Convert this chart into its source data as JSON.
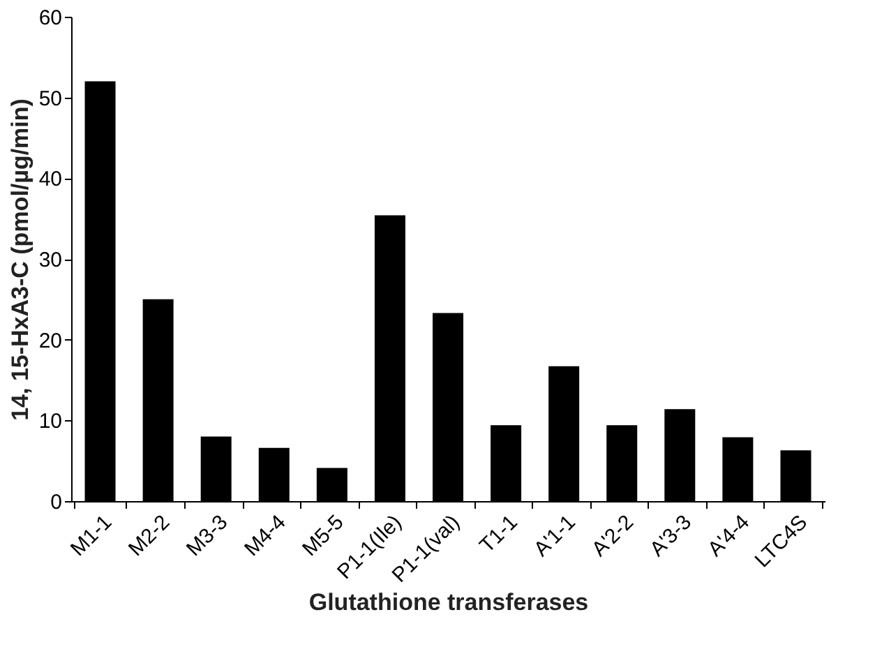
{
  "chart_data": {
    "type": "bar",
    "xlabel": "Glutathione transferases",
    "ylabel": "14, 15-HxA3-C  (pmol/µg/min)",
    "categories": [
      "M1-1",
      "M2-2",
      "M3-3",
      "M4-4",
      "M5-5",
      "P1-1(Ile)",
      "P1-1(val)",
      "T1-1",
      "A'1-1",
      "A'2-2",
      "A'3-3",
      "A'4-4",
      "LTC4S"
    ],
    "values": [
      52,
      25,
      8,
      6.6,
      4.1,
      35.4,
      23.3,
      9.4,
      16.7,
      9.4,
      11.4,
      7.9,
      6.3
    ],
    "color": "#000000",
    "ylim": [
      0,
      60
    ],
    "yticks": [
      0,
      10,
      20,
      30,
      40,
      50,
      60
    ],
    "grid": false
  }
}
